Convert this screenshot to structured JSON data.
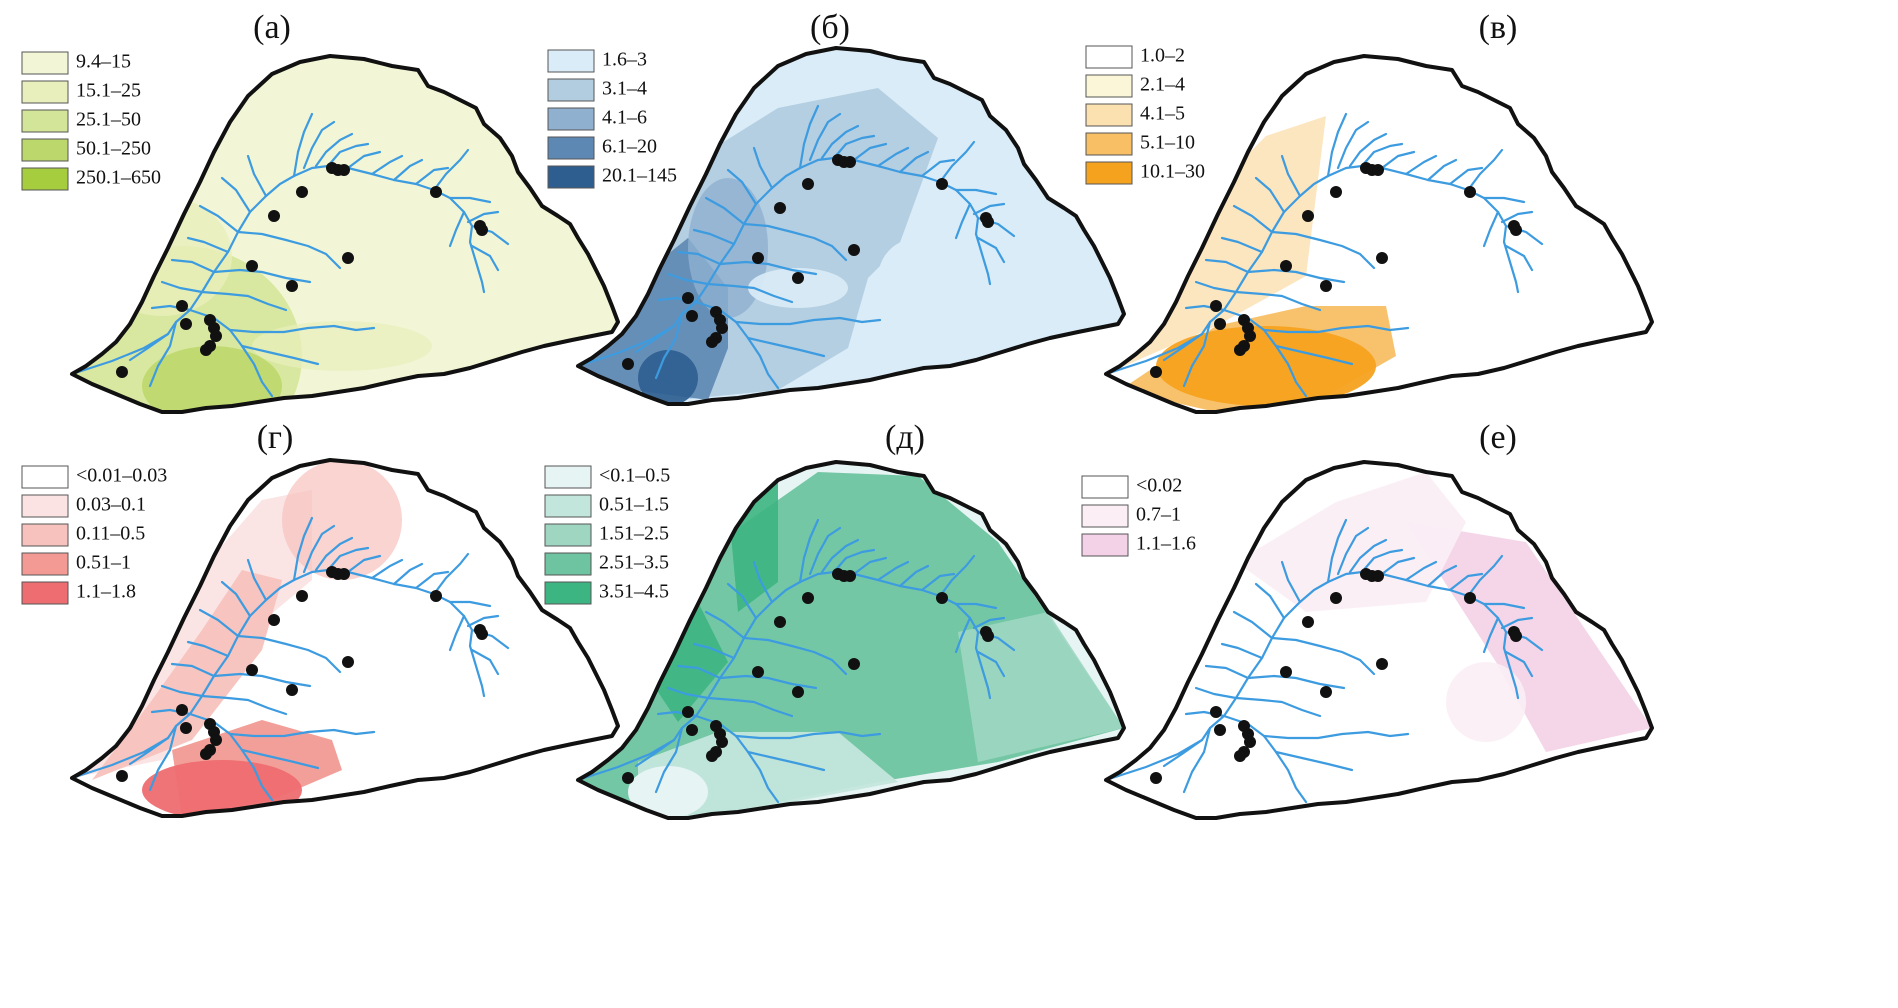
{
  "figure": {
    "boundary_color": "#111111",
    "river_color": "#3d9be0",
    "station_color": "#111111"
  },
  "panels": [
    {
      "title": "(а)",
      "legend": [
        {
          "label": "9.4–15",
          "color": "#f3f6d6"
        },
        {
          "label": "15.1–25",
          "color": "#e8efbc"
        },
        {
          "label": "25.1–50",
          "color": "#d3e598"
        },
        {
          "label": "50.1–250",
          "color": "#bcd86c"
        },
        {
          "label": "250.1–650",
          "color": "#a5cd3d"
        }
      ]
    },
    {
      "title": "(б)",
      "legend": [
        {
          "label": "1.6–3",
          "color": "#d9ecf7"
        },
        {
          "label": "3.1–4",
          "color": "#b2cce0"
        },
        {
          "label": "4.1–6",
          "color": "#8fb0cf"
        },
        {
          "label": "6.1–20",
          "color": "#5d88b3"
        },
        {
          "label": "20.1–145",
          "color": "#2e5e90"
        }
      ]
    },
    {
      "title": "(в)",
      "legend": [
        {
          "label": "1.0–2",
          "color": "#ffffff"
        },
        {
          "label": "2.1–4",
          "color": "#fcf6d8"
        },
        {
          "label": "4.1–5",
          "color": "#fbe0b0"
        },
        {
          "label": "5.1–10",
          "color": "#f8bf65"
        },
        {
          "label": "10.1–30",
          "color": "#f5a21f"
        }
      ]
    },
    {
      "title": "(г)",
      "legend": [
        {
          "label": "<0.01–0.03",
          "color": "#ffffff"
        },
        {
          "label": "0.03–0.1",
          "color": "#fbe3e3"
        },
        {
          "label": "0.11–0.5",
          "color": "#f7c2bd"
        },
        {
          "label": "0.51–1",
          "color": "#f29a93"
        },
        {
          "label": "1.1–1.8",
          "color": "#ee6d70"
        }
      ]
    },
    {
      "title": "(д)",
      "legend": [
        {
          "label": "<0.1–0.5",
          "color": "#e6f4f3"
        },
        {
          "label": "0.51–1.5",
          "color": "#c3e6dc"
        },
        {
          "label": "1.51–2.5",
          "color": "#9fd6c2"
        },
        {
          "label": "2.51–3.5",
          "color": "#6ec4a0"
        },
        {
          "label": "3.51–4.5",
          "color": "#3db582"
        }
      ]
    },
    {
      "title": "(е)",
      "legend": [
        {
          "label": "<0.02",
          "color": "#ffffff"
        },
        {
          "label": "0.7–1",
          "color": "#fbeef5"
        },
        {
          "label": "1.1–1.6",
          "color": "#f3d1e6"
        }
      ]
    }
  ]
}
